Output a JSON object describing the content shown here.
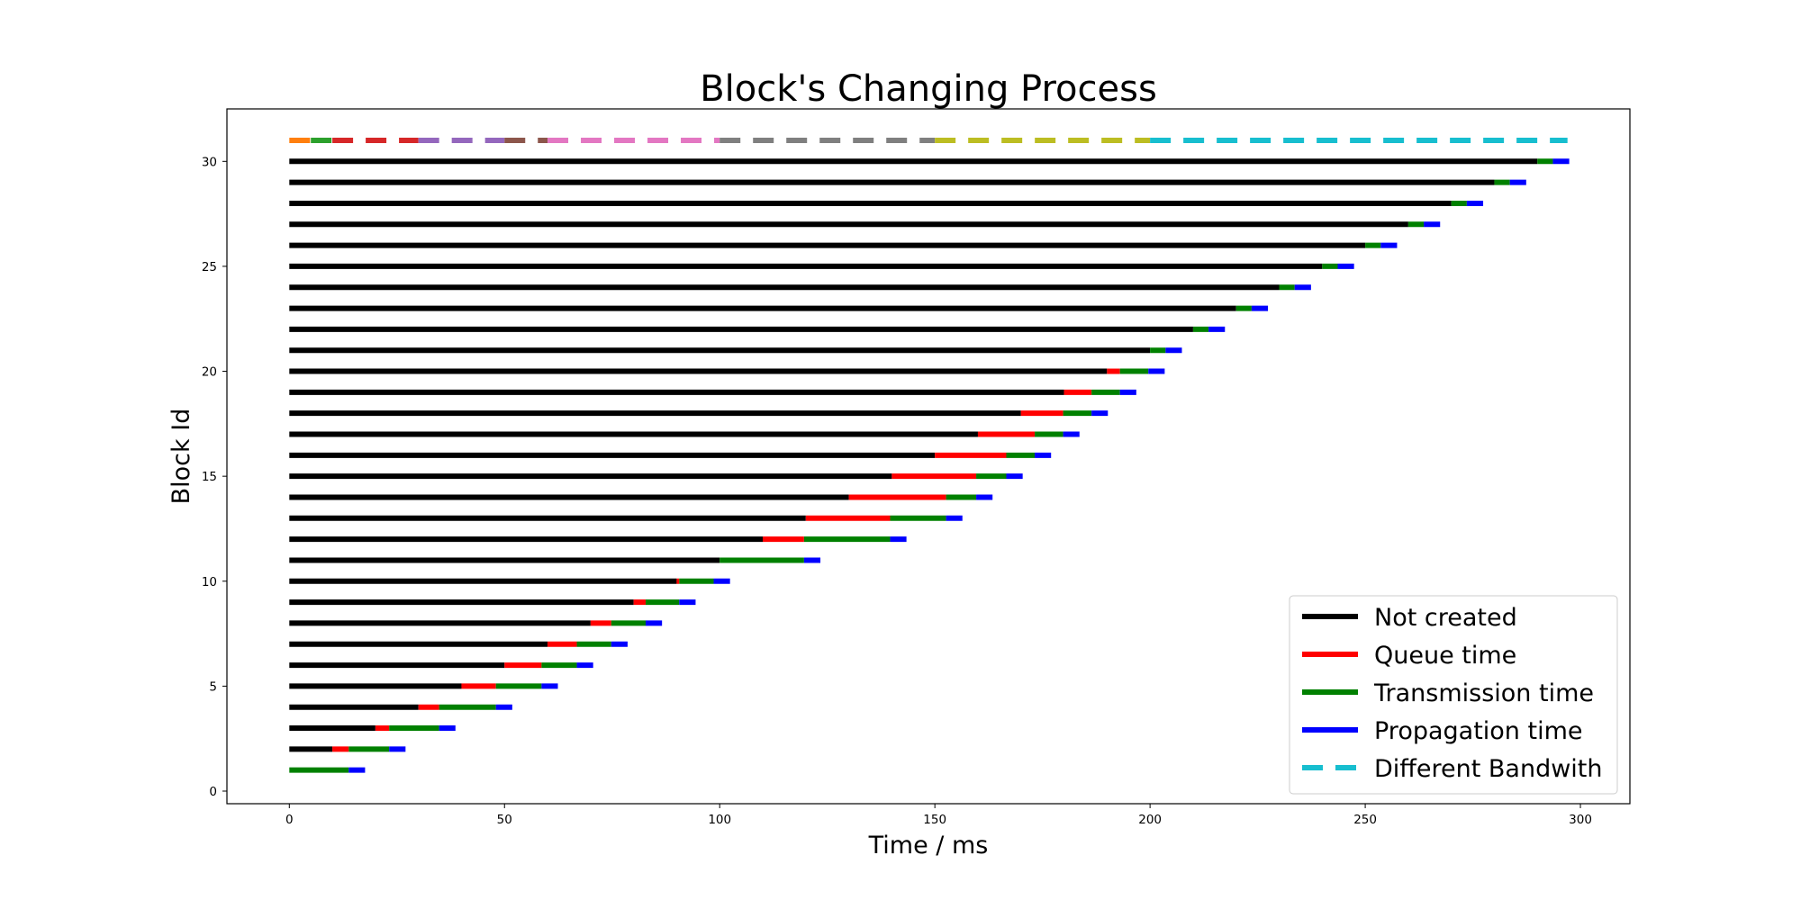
{
  "chart_data": {
    "type": "bar",
    "title": "Block's Changing Process",
    "xlabel": "Time / ms",
    "ylabel": "Block Id",
    "xlim": [
      -14.5,
      311.5
    ],
    "ylim": [
      -0.6,
      32.5
    ],
    "x_ticks": [
      0,
      50,
      100,
      150,
      200,
      250,
      300
    ],
    "y_ticks": [
      0,
      5,
      10,
      15,
      20,
      25,
      30
    ],
    "grid": false,
    "legend_position": "lower-right",
    "legend": [
      {
        "label": "Not created",
        "color": "#000000",
        "style": "solid"
      },
      {
        "label": "Queue time",
        "color": "#ff0000",
        "style": "solid"
      },
      {
        "label": "Transmission time",
        "color": "#008000",
        "style": "solid"
      },
      {
        "label": "Propagation time",
        "color": "#0000ff",
        "style": "solid"
      },
      {
        "label": "Different Bandwith",
        "color": "#17becf",
        "style": "dashed"
      }
    ],
    "segment_colors": {
      "not_created": "#000000",
      "queue": "#ff0000",
      "transmission": "#008000",
      "propagation": "#0000ff"
    },
    "blocks": [
      {
        "id": 1,
        "created": 0,
        "queue_end": 0,
        "trans_end": 13.8,
        "prop_end": 17.6
      },
      {
        "id": 2,
        "created": 10,
        "queue_end": 13.8,
        "trans_end": 23.2,
        "prop_end": 27
      },
      {
        "id": 3,
        "created": 20,
        "queue_end": 23.2,
        "trans_end": 34.8,
        "prop_end": 38.6
      },
      {
        "id": 4,
        "created": 30,
        "queue_end": 34.8,
        "trans_end": 48,
        "prop_end": 51.8
      },
      {
        "id": 5,
        "created": 40,
        "queue_end": 48,
        "trans_end": 58.6,
        "prop_end": 62.4
      },
      {
        "id": 6,
        "created": 50,
        "queue_end": 58.6,
        "trans_end": 66.8,
        "prop_end": 70.6
      },
      {
        "id": 7,
        "created": 60,
        "queue_end": 66.8,
        "trans_end": 74.8,
        "prop_end": 78.6
      },
      {
        "id": 8,
        "created": 70,
        "queue_end": 74.8,
        "trans_end": 82.8,
        "prop_end": 86.6
      },
      {
        "id": 9,
        "created": 80,
        "queue_end": 82.8,
        "trans_end": 90.6,
        "prop_end": 94.4
      },
      {
        "id": 10,
        "created": 90,
        "queue_end": 90.6,
        "trans_end": 98.6,
        "prop_end": 102.4
      },
      {
        "id": 11,
        "created": 100,
        "queue_end": 100,
        "trans_end": 119.6,
        "prop_end": 123.4
      },
      {
        "id": 12,
        "created": 110,
        "queue_end": 119.6,
        "trans_end": 139.6,
        "prop_end": 143.4
      },
      {
        "id": 13,
        "created": 120,
        "queue_end": 139.6,
        "trans_end": 152.6,
        "prop_end": 156.4
      },
      {
        "id": 14,
        "created": 130,
        "queue_end": 152.6,
        "trans_end": 159.6,
        "prop_end": 163.4
      },
      {
        "id": 15,
        "created": 140,
        "queue_end": 159.6,
        "trans_end": 166.6,
        "prop_end": 170.4
      },
      {
        "id": 16,
        "created": 150,
        "queue_end": 166.6,
        "trans_end": 173.2,
        "prop_end": 177
      },
      {
        "id": 17,
        "created": 160,
        "queue_end": 173.2,
        "trans_end": 179.8,
        "prop_end": 183.6
      },
      {
        "id": 18,
        "created": 170,
        "queue_end": 179.8,
        "trans_end": 186.4,
        "prop_end": 190.2
      },
      {
        "id": 19,
        "created": 180,
        "queue_end": 186.4,
        "trans_end": 193,
        "prop_end": 196.8
      },
      {
        "id": 20,
        "created": 190,
        "queue_end": 193,
        "trans_end": 199.6,
        "prop_end": 203.4
      },
      {
        "id": 21,
        "created": 200,
        "queue_end": 200,
        "trans_end": 203.6,
        "prop_end": 207.4
      },
      {
        "id": 22,
        "created": 210,
        "queue_end": 210,
        "trans_end": 213.6,
        "prop_end": 217.4
      },
      {
        "id": 23,
        "created": 220,
        "queue_end": 220,
        "trans_end": 223.6,
        "prop_end": 227.4
      },
      {
        "id": 24,
        "created": 230,
        "queue_end": 230,
        "trans_end": 233.6,
        "prop_end": 237.4
      },
      {
        "id": 25,
        "created": 240,
        "queue_end": 240,
        "trans_end": 243.6,
        "prop_end": 247.4
      },
      {
        "id": 26,
        "created": 250,
        "queue_end": 250,
        "trans_end": 253.6,
        "prop_end": 257.4
      },
      {
        "id": 27,
        "created": 260,
        "queue_end": 260,
        "trans_end": 263.6,
        "prop_end": 267.4
      },
      {
        "id": 28,
        "created": 270,
        "queue_end": 270,
        "trans_end": 273.6,
        "prop_end": 277.4
      },
      {
        "id": 29,
        "created": 280,
        "queue_end": 280,
        "trans_end": 283.6,
        "prop_end": 287.4
      },
      {
        "id": 30,
        "created": 290,
        "queue_end": 290,
        "trans_end": 293.6,
        "prop_end": 297.4
      }
    ],
    "bandwidth_line": {
      "y": 31,
      "segments": [
        {
          "start": 0,
          "end": 5,
          "color": "#ff7f0e"
        },
        {
          "start": 5,
          "end": 10,
          "color": "#2ca02c"
        },
        {
          "start": 10,
          "end": 30,
          "color": "#d62728"
        },
        {
          "start": 30,
          "end": 50,
          "color": "#9467bd"
        },
        {
          "start": 50,
          "end": 60,
          "color": "#8c564b"
        },
        {
          "start": 60,
          "end": 100,
          "color": "#e377c2"
        },
        {
          "start": 100,
          "end": 150,
          "color": "#7f7f7f"
        },
        {
          "start": 150,
          "end": 200,
          "color": "#bcbd22"
        },
        {
          "start": 200,
          "end": 297,
          "color": "#17becf"
        }
      ]
    }
  }
}
